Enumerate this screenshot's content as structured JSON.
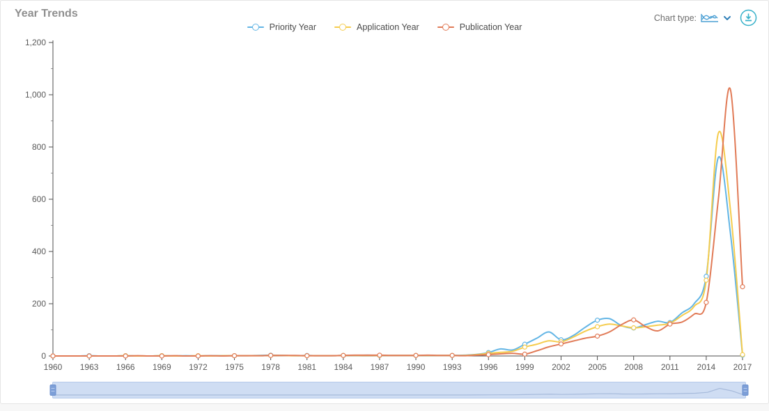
{
  "header": {
    "title": "Year Trends",
    "chart_type_label": "Chart type:"
  },
  "icons": {
    "chart_type_icon": "line-chart-icon",
    "dropdown_icon": "chevron-down-icon",
    "download_icon": "download-icon"
  },
  "colors": {
    "axis": "#4d4d4d",
    "tick_label": "#595959",
    "minor_tick": "#9a9a9a",
    "brush_fill": "#cfddf3",
    "brush_border": "#b5c9ea",
    "brush_handle": "#7d9fd8",
    "sparkline": "#96add2",
    "accent_teal": "#35b0c9",
    "accent_blue": "#4a9fd4"
  },
  "chart_data": {
    "type": "line",
    "title": "Year Trends",
    "xlabel": "",
    "ylabel": "",
    "ylim": [
      0,
      1200
    ],
    "y_ticks": [
      0,
      200,
      400,
      600,
      800,
      1000,
      1200
    ],
    "y_tick_labels": [
      "0",
      "200",
      "400",
      "600",
      "800",
      "1,000",
      "1,200"
    ],
    "x_tick_years": [
      1960,
      1963,
      1966,
      1969,
      1972,
      1975,
      1978,
      1981,
      1984,
      1987,
      1990,
      1993,
      1996,
      1999,
      2002,
      2005,
      2008,
      2011,
      2014,
      2017
    ],
    "x_start": 1960,
    "x_end": 2017,
    "marker_every": 3,
    "grid": false,
    "legend_position": "top",
    "series": [
      {
        "name": "Priority Year",
        "color": "#62b5e5",
        "values": [
          0,
          0,
          0,
          1,
          0,
          0,
          1,
          0,
          0,
          1,
          0,
          1,
          0,
          1,
          1,
          1,
          1,
          2,
          3,
          2,
          1,
          2,
          1,
          1,
          2,
          2,
          3,
          2,
          2,
          2,
          2,
          2,
          2,
          2,
          3,
          6,
          13,
          27,
          23,
          45,
          68,
          92,
          62,
          78,
          110,
          137,
          143,
          116,
          107,
          120,
          133,
          128,
          165,
          200,
          305,
          760,
          470,
          3
        ]
      },
      {
        "name": "Application Year",
        "color": "#f5cc4d",
        "values": [
          0,
          0,
          0,
          0,
          0,
          0,
          1,
          0,
          0,
          1,
          0,
          0,
          1,
          0,
          1,
          1,
          1,
          1,
          2,
          2,
          1,
          1,
          1,
          1,
          2,
          2,
          2,
          2,
          2,
          2,
          2,
          2,
          2,
          2,
          2,
          5,
          10,
          14,
          18,
          34,
          45,
          58,
          54,
          72,
          95,
          112,
          122,
          115,
          108,
          112,
          118,
          125,
          155,
          190,
          290,
          853,
          560,
          5
        ]
      },
      {
        "name": "Publication Year",
        "color": "#e17a56",
        "values": [
          0,
          0,
          0,
          0,
          0,
          0,
          0,
          1,
          0,
          0,
          1,
          0,
          0,
          1,
          0,
          1,
          1,
          1,
          2,
          2,
          2,
          1,
          1,
          1,
          2,
          3,
          3,
          3,
          2,
          2,
          2,
          3,
          2,
          2,
          1,
          3,
          5,
          8,
          10,
          7,
          20,
          35,
          46,
          57,
          68,
          76,
          92,
          120,
          138,
          112,
          96,
          122,
          130,
          160,
          205,
          600,
          1020,
          265
        ]
      }
    ]
  }
}
